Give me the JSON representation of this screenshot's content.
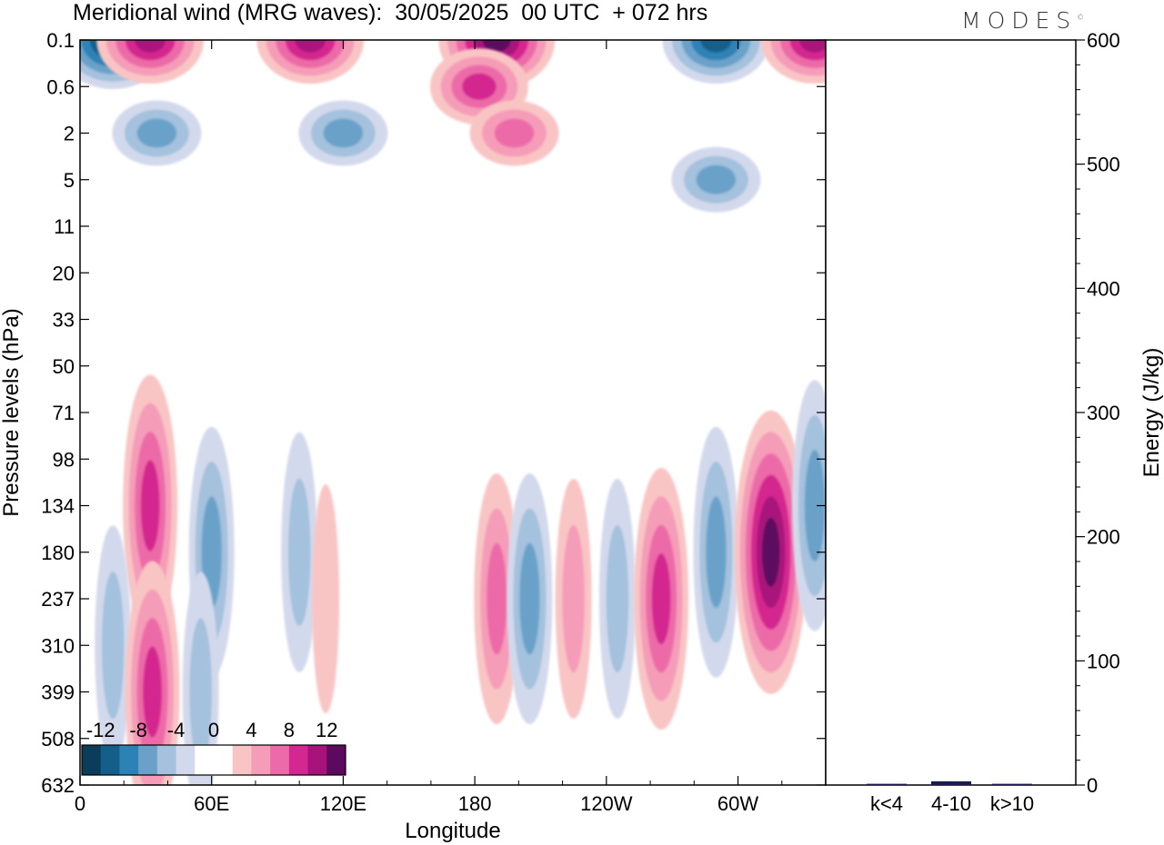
{
  "header": {
    "title": "Meridional wind (MRG waves):  30/05/2025  00 UTC  + 072 hrs",
    "brand": "MODES"
  },
  "colors": {
    "negative": [
      "#0b3d5a",
      "#145f8a",
      "#2d82b5",
      "#6aa1c9",
      "#a4c1dd",
      "#d3d9ec"
    ],
    "zero": "#ffffff",
    "positive": [
      "#f9c4c4",
      "#f59cb8",
      "#ec6aa8",
      "#d4278f",
      "#a8127b",
      "#5c0a5e"
    ]
  },
  "chart_data": [
    {
      "type": "heatmap",
      "title": "Meridional wind (MRG waves):  30/05/2025  00 UTC  + 072 hrs",
      "xlabel": "Longitude",
      "ylabel": "Pressure levels (hPa)",
      "x_ticks": [
        "0",
        "60E",
        "120E",
        "180",
        "120W",
        "60W"
      ],
      "x_tick_degrees": [
        0,
        60,
        120,
        180,
        240,
        300
      ],
      "xlim": [
        0,
        340
      ],
      "y_ticks": [
        "0.1",
        "0.6",
        "2",
        "5",
        "11",
        "20",
        "33",
        "50",
        "71",
        "98",
        "134",
        "180",
        "237",
        "310",
        "399",
        "508",
        "632"
      ],
      "colorbar": {
        "labels": [
          "-12",
          "-8",
          "-4",
          "0",
          "4",
          "8",
          "12"
        ],
        "levels": [
          -12,
          -10,
          -8,
          -6,
          -4,
          -2,
          0,
          2,
          4,
          6,
          8,
          10,
          12
        ],
        "units": ""
      },
      "features": [
        {
          "lon": 15,
          "level": "0.1",
          "value": -13
        },
        {
          "lon": 32,
          "level": "0.1",
          "value": 10
        },
        {
          "lon": 105,
          "level": "0.1",
          "value": 10
        },
        {
          "lon": 190,
          "level": "0.1",
          "value": 12
        },
        {
          "lon": 290,
          "level": "0.1",
          "value": -10
        },
        {
          "lon": 335,
          "level": "0.1",
          "value": 10
        },
        {
          "lon": 182,
          "level": "0.6",
          "value": 9
        },
        {
          "lon": 198,
          "level": "2",
          "value": 7
        },
        {
          "lon": 35,
          "level": "2",
          "value": -6
        },
        {
          "lon": 120,
          "level": "2",
          "value": -6
        },
        {
          "lon": 290,
          "level": "5",
          "value": -6
        },
        {
          "lon": 32,
          "level": "134",
          "value": 8
        },
        {
          "lon": 60,
          "level": "180",
          "value": -6
        },
        {
          "lon": 100,
          "level": "180",
          "value": -5
        },
        {
          "lon": 112,
          "level": "237",
          "value": 3
        },
        {
          "lon": 190,
          "level": "237",
          "value": 7
        },
        {
          "lon": 205,
          "level": "237",
          "value": -6
        },
        {
          "lon": 225,
          "level": "237",
          "value": 5
        },
        {
          "lon": 245,
          "level": "237",
          "value": -5
        },
        {
          "lon": 265,
          "level": "237",
          "value": 9
        },
        {
          "lon": 290,
          "level": "180",
          "value": -7
        },
        {
          "lon": 315,
          "level": "180",
          "value": 12
        },
        {
          "lon": 335,
          "level": "134",
          "value": -6
        },
        {
          "lon": 15,
          "level": "310",
          "value": -5
        },
        {
          "lon": 33,
          "level": "399",
          "value": 8
        },
        {
          "lon": 55,
          "level": "399",
          "value": -5
        }
      ]
    },
    {
      "type": "bar",
      "categories": [
        "k<4",
        "4-10",
        "k>10"
      ],
      "values": [
        1,
        3,
        1
      ],
      "ylabel": "Energy (J/kg)",
      "ylim": [
        0,
        600
      ],
      "y_ticks": [
        0,
        100,
        200,
        300,
        400,
        500,
        600
      ],
      "bar_color": "#1a1a55"
    }
  ]
}
